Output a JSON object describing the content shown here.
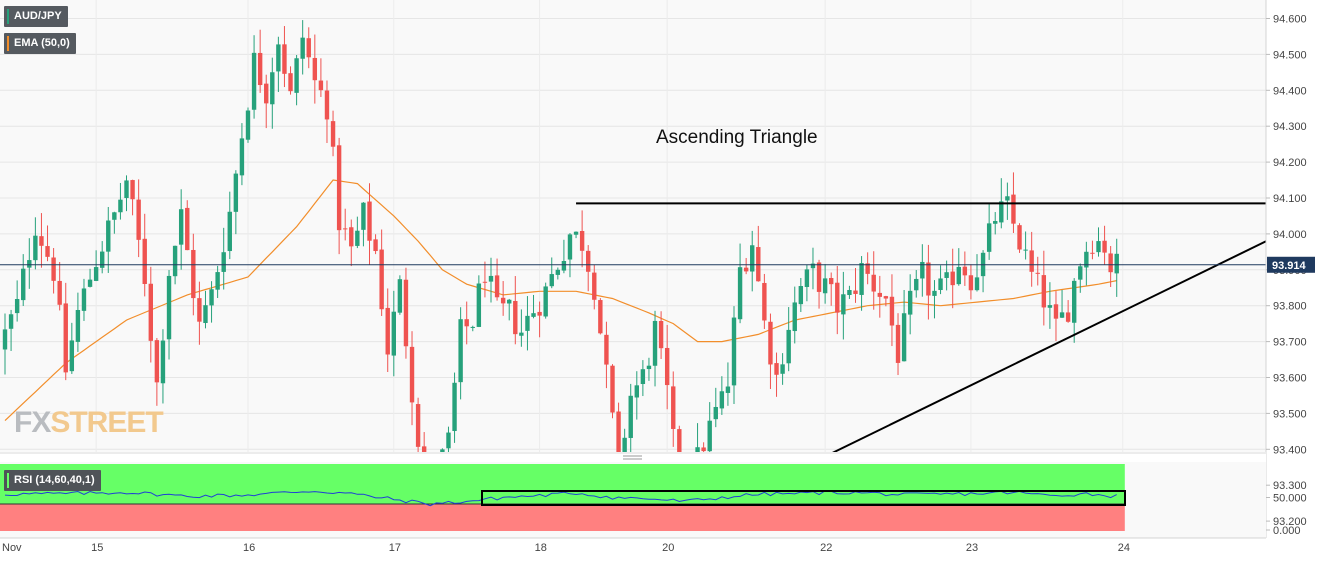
{
  "watermark": {
    "fx": "FX",
    "street": "STREET"
  },
  "legend": {
    "symbol": "AUD/JPY",
    "ema": "EMA (50,0)",
    "rsi": "RSI (14,60,40,1)"
  },
  "colors": {
    "up": "#26a17b",
    "down": "#ef5350",
    "ema": "#f28e2b",
    "rsi_line": "#1f3fd6",
    "rsi_upper_zone": "#66ff66",
    "rsi_lower_zone": "#ff8080",
    "price_tag": "#1f3a5f"
  },
  "chart_data": [
    {
      "type": "candlestick",
      "annotation": "Ascending Triangle",
      "current_price": 93.914,
      "current_price_label": "93.914",
      "y_ticks": [
        "94.600",
        "94.500",
        "94.400",
        "94.300",
        "94.200",
        "94.100",
        "94.000",
        "93.900",
        "93.800",
        "93.700",
        "93.600",
        "93.500",
        "93.400",
        "93.300",
        "93.200"
      ],
      "y_tick_values": [
        94.6,
        94.5,
        94.4,
        94.3,
        94.2,
        94.1,
        94.0,
        93.9,
        93.8,
        93.7,
        93.6,
        93.5,
        93.4,
        93.3,
        93.2
      ],
      "ylim": [
        93.15,
        94.66
      ],
      "x_ticks": [
        "Nov",
        "15",
        "16",
        "17",
        "18",
        "20",
        "22",
        "23",
        "24"
      ],
      "x_tick_index": [
        0,
        15,
        40,
        64,
        88,
        109,
        135,
        159,
        184
      ],
      "n_bars": 184,
      "resistance_line": {
        "from_index": 94,
        "to_index": 204,
        "value": 94.085
      },
      "support_line": {
        "from": [
          112,
          93.19
        ],
        "to": [
          204,
          93.95
        ]
      },
      "path_anchors": [
        [
          0,
          93.68
        ],
        [
          3,
          93.8
        ],
        [
          6,
          94.03
        ],
        [
          9,
          93.9
        ],
        [
          11,
          93.62
        ],
        [
          13,
          93.78
        ],
        [
          16,
          93.93
        ],
        [
          19,
          94.05
        ],
        [
          21,
          94.15
        ],
        [
          24,
          93.88
        ],
        [
          26,
          93.58
        ],
        [
          28,
          93.9
        ],
        [
          30,
          94.05
        ],
        [
          33,
          93.74
        ],
        [
          35,
          93.83
        ],
        [
          38,
          94.06
        ],
        [
          40,
          94.28
        ],
        [
          42,
          94.48
        ],
        [
          44,
          94.4
        ],
        [
          46,
          94.55
        ],
        [
          48,
          94.38
        ],
        [
          50,
          94.55
        ],
        [
          52,
          94.42
        ],
        [
          54,
          94.36
        ],
        [
          56,
          94.04
        ],
        [
          58,
          93.95
        ],
        [
          60,
          94.05
        ],
        [
          62,
          93.95
        ],
        [
          64,
          93.68
        ],
        [
          66,
          93.85
        ],
        [
          68,
          93.57
        ],
        [
          70,
          93.3
        ],
        [
          72,
          93.33
        ],
        [
          74,
          93.42
        ],
        [
          76,
          93.72
        ],
        [
          78,
          93.76
        ],
        [
          80,
          93.9
        ],
        [
          82,
          93.78
        ],
        [
          84,
          93.78
        ],
        [
          86,
          93.73
        ],
        [
          88,
          93.79
        ],
        [
          90,
          93.84
        ],
        [
          92,
          93.92
        ],
        [
          94,
          94.0
        ],
        [
          96,
          93.98
        ],
        [
          98,
          93.86
        ],
        [
          100,
          93.6
        ],
        [
          102,
          93.35
        ],
        [
          104,
          93.55
        ],
        [
          106,
          93.6
        ],
        [
          108,
          93.73
        ],
        [
          110,
          93.55
        ],
        [
          112,
          93.28
        ],
        [
          114,
          93.32
        ],
        [
          116,
          93.42
        ],
        [
          118,
          93.5
        ],
        [
          120,
          93.58
        ],
        [
          122,
          93.9
        ],
        [
          124,
          93.98
        ],
        [
          126,
          93.75
        ],
        [
          128,
          93.6
        ],
        [
          130,
          93.75
        ],
        [
          132,
          93.85
        ],
        [
          134,
          93.89
        ],
        [
          136,
          93.85
        ],
        [
          138,
          93.8
        ],
        [
          140,
          93.82
        ],
        [
          142,
          93.9
        ],
        [
          144,
          93.86
        ],
        [
          146,
          93.82
        ],
        [
          148,
          93.67
        ],
        [
          150,
          93.8
        ],
        [
          152,
          93.88
        ],
        [
          154,
          93.83
        ],
        [
          156,
          93.85
        ],
        [
          158,
          93.93
        ],
        [
          160,
          93.88
        ],
        [
          162,
          93.93
        ],
        [
          164,
          94.05
        ],
        [
          166,
          94.07
        ],
        [
          168,
          93.98
        ],
        [
          170,
          93.88
        ],
        [
          172,
          93.82
        ],
        [
          174,
          93.73
        ],
        [
          176,
          93.8
        ],
        [
          178,
          93.93
        ],
        [
          180,
          93.99
        ],
        [
          182,
          93.97
        ],
        [
          183,
          93.91
        ]
      ],
      "ema_anchors": [
        [
          0,
          93.48
        ],
        [
          10,
          93.64
        ],
        [
          20,
          93.76
        ],
        [
          30,
          93.83
        ],
        [
          40,
          93.88
        ],
        [
          48,
          94.02
        ],
        [
          54,
          94.15
        ],
        [
          58,
          94.14
        ],
        [
          64,
          94.05
        ],
        [
          68,
          93.98
        ],
        [
          72,
          93.9
        ],
        [
          76,
          93.86
        ],
        [
          82,
          93.83
        ],
        [
          88,
          93.84
        ],
        [
          94,
          93.84
        ],
        [
          100,
          93.82
        ],
        [
          106,
          93.78
        ],
        [
          110,
          93.75
        ],
        [
          114,
          93.7
        ],
        [
          118,
          93.7
        ],
        [
          124,
          93.72
        ],
        [
          130,
          93.76
        ],
        [
          136,
          93.78
        ],
        [
          142,
          93.8
        ],
        [
          148,
          93.81
        ],
        [
          154,
          93.8
        ],
        [
          160,
          93.81
        ],
        [
          166,
          93.82
        ],
        [
          172,
          93.84
        ],
        [
          176,
          93.85
        ],
        [
          180,
          93.86
        ],
        [
          183,
          93.87
        ]
      ]
    },
    {
      "type": "line",
      "name": "RSI (14,60,40,1)",
      "y_ticks": [
        "50.000",
        "0.000"
      ],
      "y_tick_values": [
        50,
        0
      ],
      "ylim": [
        0,
        100
      ],
      "upper_level": 60,
      "lower_level": 40,
      "anchors": [
        [
          0,
          55
        ],
        [
          10,
          56
        ],
        [
          20,
          58
        ],
        [
          30,
          52
        ],
        [
          40,
          54
        ],
        [
          50,
          60
        ],
        [
          56,
          57
        ],
        [
          64,
          47
        ],
        [
          70,
          40
        ],
        [
          76,
          44
        ],
        [
          82,
          50
        ],
        [
          88,
          53
        ],
        [
          94,
          57
        ],
        [
          100,
          50
        ],
        [
          106,
          48
        ],
        [
          112,
          44
        ],
        [
          118,
          50
        ],
        [
          124,
          55
        ],
        [
          130,
          56
        ],
        [
          136,
          58
        ],
        [
          142,
          57
        ],
        [
          148,
          54
        ],
        [
          154,
          55
        ],
        [
          160,
          56
        ],
        [
          166,
          58
        ],
        [
          172,
          53
        ],
        [
          178,
          56
        ],
        [
          183,
          52
        ]
      ]
    }
  ]
}
